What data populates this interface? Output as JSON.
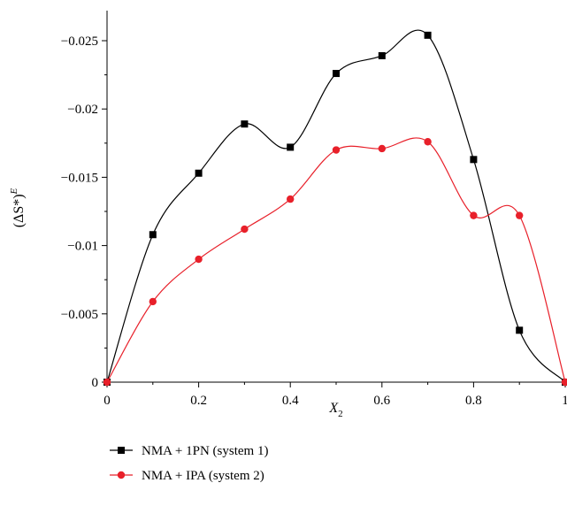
{
  "chart_data": {
    "type": "line",
    "title": "",
    "xlabel": "X",
    "xlabel_sub": "2",
    "ylabel": "(ΔS*)",
    "ylabel_sup": "E",
    "xlim": [
      0,
      1
    ],
    "ylim": [
      0,
      -0.027
    ],
    "x_ticks": [
      0,
      0.2,
      0.4,
      0.6,
      0.8,
      1
    ],
    "x_tick_labels": [
      "0",
      "0.2",
      "0.4",
      "0.6",
      "0.8",
      "1"
    ],
    "y_ticks": [
      0,
      -0.005,
      -0.01,
      -0.015,
      -0.02,
      -0.025
    ],
    "y_tick_labels": [
      "0",
      "−0.005",
      "−0.01",
      "−0.015",
      "−0.02",
      "−0.025"
    ],
    "grid": false,
    "legend_position": "bottom-left",
    "series": [
      {
        "name": "NMA + 1PN (system 1)",
        "color": "#000000",
        "marker": "square",
        "x": [
          0,
          0.1,
          0.2,
          0.3,
          0.4,
          0.5,
          0.6,
          0.7,
          0.8,
          0.9,
          1.0
        ],
        "y": [
          0,
          -0.0108,
          -0.0153,
          -0.0189,
          -0.0172,
          -0.0226,
          -0.0239,
          -0.0254,
          -0.0163,
          -0.0038,
          0
        ]
      },
      {
        "name": "NMA + IPA (system 2)",
        "color": "#e8202a",
        "marker": "circle",
        "x": [
          0,
          0.1,
          0.2,
          0.3,
          0.4,
          0.5,
          0.6,
          0.7,
          0.8,
          0.9,
          1.0
        ],
        "y": [
          0,
          -0.0059,
          -0.009,
          -0.0112,
          -0.0134,
          -0.017,
          -0.0171,
          -0.0176,
          -0.0122,
          -0.0122,
          0
        ]
      }
    ]
  }
}
